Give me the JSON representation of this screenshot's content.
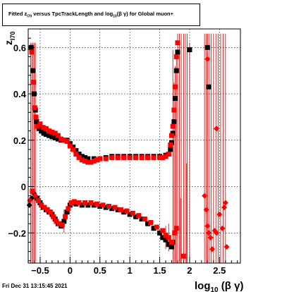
{
  "title": {
    "pre": "Fitted  z",
    "sub1": "I70",
    "mid": " versus TpcTrackLength and log",
    "sub2": "10",
    "post": "(β  γ) for Global muon+"
  },
  "footer": "Fri Dec 31 13:15:45 2021",
  "chart_data": {
    "type": "scatter",
    "title": "Fitted  zI70 versus TpcTrackLength and log10(β γ) for Global muon+",
    "xlabel": "log10(β γ)",
    "ylabel": "zI70",
    "xlim": [
      -0.7,
      2.85
    ],
    "ylim": [
      -0.33,
      0.68
    ],
    "xticks": [
      -0.5,
      0,
      0.5,
      1,
      1.5,
      2,
      2.5
    ],
    "xtick_labels": [
      "−0.5",
      "0",
      "0.5",
      "1",
      "1.5",
      "2",
      "2.5"
    ],
    "yticks": [
      -0.2,
      0,
      0.2,
      0.4,
      0.6
    ],
    "ytick_labels": [
      "−0.2",
      "0",
      "0.2",
      "0.4",
      "0.6"
    ],
    "grid": true,
    "series": [
      {
        "color": "#000000",
        "points": [
          [
            -0.65,
            0.6
          ],
          [
            -0.62,
            0.5
          ],
          [
            -0.6,
            0.4
          ],
          [
            -0.58,
            0.33
          ],
          [
            -0.56,
            0.28
          ],
          [
            -0.52,
            0.25
          ],
          [
            -0.48,
            0.24
          ],
          [
            -0.44,
            0.23
          ],
          [
            -0.4,
            0.225
          ],
          [
            -0.35,
            0.22
          ],
          [
            -0.3,
            0.215
          ],
          [
            -0.25,
            0.21
          ],
          [
            -0.2,
            0.205
          ],
          [
            -0.15,
            0.2
          ],
          [
            -0.1,
            0.2
          ],
          [
            -0.05,
            0.2
          ],
          [
            0.0,
            0.185
          ],
          [
            0.05,
            0.17
          ],
          [
            0.1,
            0.155
          ],
          [
            0.15,
            0.14
          ],
          [
            0.2,
            0.13
          ],
          [
            0.25,
            0.125
          ],
          [
            0.3,
            0.12
          ],
          [
            0.4,
            0.12
          ],
          [
            0.5,
            0.12
          ],
          [
            0.6,
            0.125
          ],
          [
            0.7,
            0.13
          ],
          [
            0.8,
            0.13
          ],
          [
            0.9,
            0.13
          ],
          [
            1.0,
            0.13
          ],
          [
            1.1,
            0.13
          ],
          [
            1.2,
            0.13
          ],
          [
            1.3,
            0.13
          ],
          [
            1.4,
            0.13
          ],
          [
            1.5,
            0.13
          ],
          [
            1.6,
            0.135
          ],
          [
            1.65,
            0.14
          ],
          [
            1.68,
            0.16
          ],
          [
            1.7,
            0.19
          ],
          [
            1.72,
            0.23
          ],
          [
            1.74,
            0.28
          ],
          [
            1.76,
            0.38
          ],
          [
            1.78,
            0.5
          ],
          [
            1.8,
            0.58
          ],
          [
            2.0,
            0.59
          ],
          [
            2.3,
            0.6
          ],
          [
            2.32,
            0.43
          ],
          [
            -0.68,
            -0.08
          ],
          [
            -0.64,
            -0.05
          ],
          [
            -0.6,
            -0.03
          ],
          [
            -0.55,
            -0.05
          ],
          [
            -0.5,
            -0.07
          ],
          [
            -0.45,
            -0.09
          ],
          [
            -0.4,
            -0.1
          ],
          [
            -0.35,
            -0.11
          ],
          [
            -0.3,
            -0.12
          ],
          [
            -0.25,
            -0.14
          ],
          [
            -0.2,
            -0.16
          ],
          [
            -0.15,
            -0.17
          ],
          [
            -0.1,
            -0.15
          ],
          [
            -0.05,
            -0.11
          ],
          [
            0.0,
            -0.08
          ],
          [
            0.05,
            -0.07
          ],
          [
            0.1,
            -0.075
          ],
          [
            0.2,
            -0.08
          ],
          [
            0.3,
            -0.08
          ],
          [
            0.4,
            -0.08
          ],
          [
            0.5,
            -0.085
          ],
          [
            0.6,
            -0.09
          ],
          [
            0.7,
            -0.095
          ],
          [
            0.8,
            -0.1
          ],
          [
            0.9,
            -0.11
          ],
          [
            1.0,
            -0.12
          ],
          [
            1.1,
            -0.13
          ],
          [
            1.2,
            -0.14
          ],
          [
            1.3,
            -0.16
          ],
          [
            1.4,
            -0.18
          ],
          [
            1.5,
            -0.2
          ],
          [
            1.55,
            -0.22
          ],
          [
            1.6,
            -0.23
          ],
          [
            1.65,
            -0.25
          ],
          [
            1.7,
            -0.26
          ],
          [
            1.72,
            -0.24
          ]
        ]
      },
      {
        "color": "#ff0000",
        "points": [
          [
            -0.64,
            0.58
          ],
          [
            -0.61,
            0.45
          ],
          [
            -0.59,
            0.34
          ],
          [
            -0.57,
            0.3
          ],
          [
            -0.55,
            0.26
          ],
          [
            -0.5,
            0.27
          ],
          [
            -0.45,
            0.255
          ],
          [
            -0.4,
            0.25
          ],
          [
            -0.35,
            0.24
          ],
          [
            -0.3,
            0.235
          ],
          [
            -0.25,
            0.23
          ],
          [
            -0.2,
            0.22
          ],
          [
            -0.15,
            0.205
          ],
          [
            -0.1,
            0.2
          ],
          [
            -0.05,
            0.195
          ],
          [
            0.0,
            0.175
          ],
          [
            0.05,
            0.16
          ],
          [
            0.1,
            0.14
          ],
          [
            0.15,
            0.125
          ],
          [
            0.2,
            0.115
          ],
          [
            0.25,
            0.11
          ],
          [
            0.3,
            0.105
          ],
          [
            0.35,
            0.105
          ],
          [
            0.4,
            0.11
          ],
          [
            0.45,
            0.115
          ],
          [
            0.5,
            0.12
          ],
          [
            0.6,
            0.12
          ],
          [
            0.7,
            0.125
          ],
          [
            0.8,
            0.125
          ],
          [
            0.9,
            0.125
          ],
          [
            1.0,
            0.125
          ],
          [
            1.1,
            0.125
          ],
          [
            1.2,
            0.125
          ],
          [
            1.3,
            0.125
          ],
          [
            1.4,
            0.125
          ],
          [
            1.5,
            0.125
          ],
          [
            1.55,
            0.125
          ],
          [
            1.6,
            0.13
          ],
          [
            1.65,
            0.14
          ],
          [
            1.68,
            0.18
          ],
          [
            1.7,
            0.22
          ],
          [
            1.72,
            0.26
          ],
          [
            1.74,
            0.33
          ],
          [
            1.76,
            0.43
          ],
          [
            1.78,
            0.56
          ],
          [
            1.8,
            0.62
          ],
          [
            2.3,
            0.55
          ],
          [
            2.45,
            0.25
          ],
          [
            -0.67,
            -0.06
          ],
          [
            -0.63,
            -0.02
          ],
          [
            -0.58,
            -0.04
          ],
          [
            -0.53,
            -0.06
          ],
          [
            -0.48,
            -0.08
          ],
          [
            -0.43,
            -0.09
          ],
          [
            -0.38,
            -0.1
          ],
          [
            -0.33,
            -0.11
          ],
          [
            -0.28,
            -0.13
          ],
          [
            -0.23,
            -0.15
          ],
          [
            -0.18,
            -0.16
          ],
          [
            -0.13,
            -0.165
          ],
          [
            -0.08,
            -0.13
          ],
          [
            -0.03,
            -0.095
          ],
          [
            0.02,
            -0.07
          ],
          [
            0.07,
            -0.065
          ],
          [
            0.15,
            -0.07
          ],
          [
            0.25,
            -0.07
          ],
          [
            0.35,
            -0.07
          ],
          [
            0.45,
            -0.075
          ],
          [
            0.55,
            -0.08
          ],
          [
            0.65,
            -0.085
          ],
          [
            0.75,
            -0.09
          ],
          [
            0.85,
            -0.1
          ],
          [
            0.95,
            -0.105
          ],
          [
            1.05,
            -0.115
          ],
          [
            1.15,
            -0.125
          ],
          [
            1.25,
            -0.14
          ],
          [
            1.35,
            -0.155
          ],
          [
            1.45,
            -0.175
          ],
          [
            1.55,
            -0.19
          ],
          [
            1.6,
            -0.21
          ],
          [
            1.65,
            -0.22
          ],
          [
            1.7,
            -0.24
          ],
          [
            1.75,
            -0.2
          ],
          [
            1.78,
            -0.18
          ],
          [
            2.25,
            -0.04
          ],
          [
            2.28,
            -0.1
          ],
          [
            2.3,
            -0.17
          ],
          [
            2.32,
            -0.2
          ],
          [
            2.35,
            -0.22
          ],
          [
            2.38,
            -0.27
          ],
          [
            2.42,
            -0.19
          ],
          [
            2.45,
            -0.2
          ],
          [
            2.5,
            -0.12
          ],
          [
            2.55,
            -0.18
          ],
          [
            2.58,
            -0.09
          ],
          [
            2.6,
            -0.07
          ],
          [
            2.62,
            -0.26
          ],
          [
            1.9,
            -0.3
          ]
        ]
      }
    ],
    "error_bar_color": "#cc0000"
  }
}
